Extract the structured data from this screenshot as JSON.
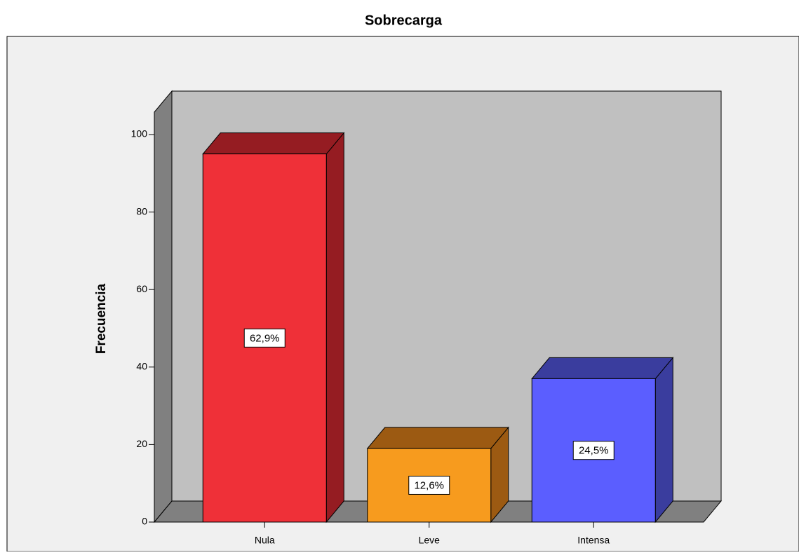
{
  "chart_data": {
    "type": "bar3d",
    "title": "Sobrecarga",
    "y_label": "Frecuencia",
    "categories": [
      "Nula",
      "Leve",
      "Intensa"
    ],
    "values": [
      95,
      19,
      37
    ],
    "percent_values": [
      62.9,
      12.6,
      24.5
    ],
    "percent_labels": [
      "62,9%",
      "12,6%",
      "24,5%"
    ],
    "colors": [
      "#ef3038",
      "#f79b1e",
      "#5b5eff"
    ],
    "side_colors": [
      "#951c22",
      "#9c5a12",
      "#3a3d9e"
    ],
    "ylim": [
      0,
      100
    ],
    "yticks": [
      0,
      20,
      40,
      60,
      80,
      100
    ]
  }
}
